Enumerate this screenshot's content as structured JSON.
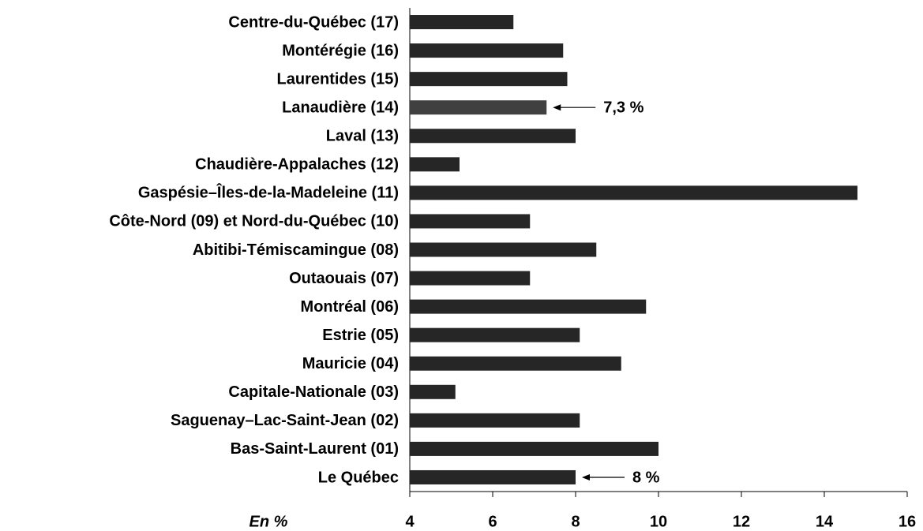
{
  "chart_data": {
    "type": "hbar",
    "categories": [
      "Centre-du-Québec (17)",
      "Montérégie (16)",
      "Laurentides (15)",
      "Lanaudière (14)",
      "Laval (13)",
      "Chaudière-Appalaches (12)",
      "Gaspésie–Îles-de-la-Madeleine (11)",
      "Côte-Nord (09) et Nord-du-Québec (10)",
      "Abitibi-Témiscamingue (08)",
      "Outaouais (07)",
      "Montréal (06)",
      "Estrie (05)",
      "Mauricie (04)",
      "Capitale-Nationale (03)",
      "Saguenay–Lac-Saint-Jean (02)",
      "Bas-Saint-Laurent (01)",
      "Le Québec"
    ],
    "values": [
      6.5,
      7.7,
      7.8,
      7.3,
      8.0,
      5.2,
      14.8,
      6.9,
      8.5,
      6.9,
      9.7,
      8.1,
      9.1,
      5.1,
      8.1,
      10.0,
      8.0
    ],
    "value_labels": [
      null,
      null,
      null,
      "7,3 %",
      null,
      null,
      null,
      null,
      null,
      null,
      null,
      null,
      null,
      null,
      null,
      null,
      "8 %"
    ],
    "colors": [
      "#262626",
      "#262626",
      "#262626",
      "#404040",
      "#262626",
      "#262626",
      "#262626",
      "#262626",
      "#262626",
      "#262626",
      "#262626",
      "#262626",
      "#262626",
      "#262626",
      "#262626",
      "#262626",
      "#262626"
    ],
    "xlabel": "En %",
    "xlim": [
      4,
      16
    ],
    "xticks": [
      4,
      6,
      8,
      10,
      12,
      14,
      16
    ]
  }
}
